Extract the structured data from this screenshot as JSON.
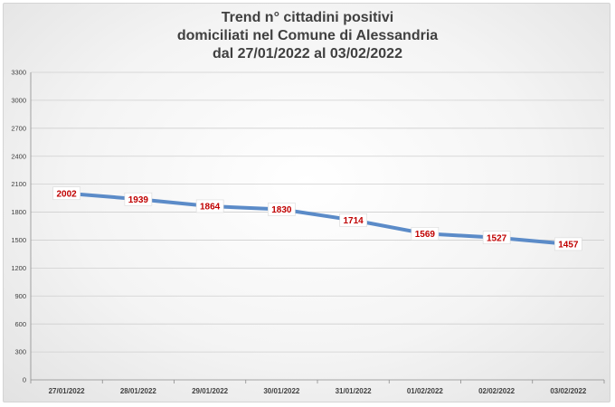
{
  "chart_data": {
    "type": "line",
    "title_lines": [
      "Trend n° cittadini positivi",
      "domiciliati nel Comune di Alessandria",
      "dal 27/01/2022 al 03/02/2022"
    ],
    "categories": [
      "27/01/2022",
      "28/01/2022",
      "29/01/2022",
      "30/01/2022",
      "31/01/2022",
      "01/02/2022",
      "02/02/2022",
      "03/02/2022"
    ],
    "series": [
      {
        "values": [
          2002,
          1939,
          1864,
          1830,
          1714,
          1569,
          1527,
          1457
        ]
      }
    ],
    "ylim": [
      0,
      3300
    ],
    "yticks": [
      0,
      300,
      600,
      900,
      1200,
      1500,
      1800,
      2100,
      2400,
      2700,
      3000,
      3300
    ],
    "grid": true,
    "legend": "none",
    "colors": {
      "line": "#5b8bc8",
      "label": "#c00000",
      "axis_text": "#404040",
      "grid": "#cfcfcf"
    }
  }
}
